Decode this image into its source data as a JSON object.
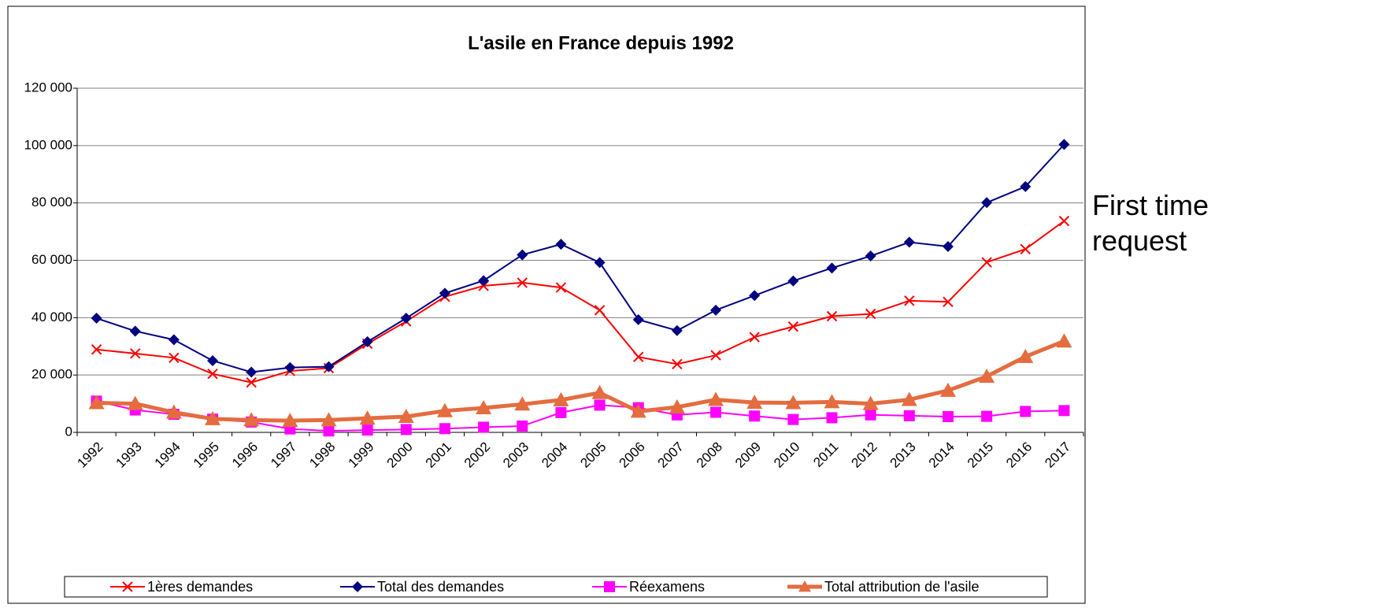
{
  "chart_data": {
    "type": "line",
    "title": "L'asile en France depuis 1992",
    "annotation": "First time request",
    "categories": [
      "1992",
      "1993",
      "1994",
      "1995",
      "1996",
      "1997",
      "1998",
      "1999",
      "2000",
      "2001",
      "2002",
      "2003",
      "2004",
      "2005",
      "2006",
      "2007",
      "2008",
      "2009",
      "2010",
      "2011",
      "2012",
      "2013",
      "2014",
      "2015",
      "2016",
      "2017"
    ],
    "series": [
      {
        "name": "1ères demandes",
        "color": "#ff0000",
        "marker": "x",
        "values": [
          28900,
          27500,
          26000,
          20400,
          17400,
          21400,
          22400,
          30900,
          38700,
          47300,
          51100,
          52200,
          50500,
          42600,
          26300,
          23800,
          26900,
          33200,
          36900,
          40500,
          41300,
          45900,
          45500,
          59300,
          63900,
          73700
        ]
      },
      {
        "name": "Total des demandes",
        "color": "#000080",
        "marker": "diamond",
        "values": [
          39800,
          35300,
          32300,
          25000,
          21000,
          22600,
          22900,
          31600,
          39800,
          48500,
          52900,
          61900,
          65600,
          59200,
          39300,
          35500,
          42600,
          47700,
          52800,
          57300,
          61500,
          66300,
          64800,
          80100,
          85700,
          100400
        ]
      },
      {
        "name": "Réexamens",
        "color": "#ff00ff",
        "marker": "square",
        "values": [
          10900,
          7800,
          6300,
          4600,
          3600,
          1200,
          500,
          800,
          1000,
          1300,
          1800,
          2200,
          6900,
          9500,
          8600,
          6100,
          7000,
          5700,
          4500,
          5100,
          6100,
          5800,
          5500,
          5600,
          7300,
          7600
        ]
      },
      {
        "name": "Total attribution de l'asile",
        "color": "#e46c3f",
        "marker": "triangle",
        "values": [
          10300,
          10000,
          7000,
          4700,
          4300,
          4100,
          4300,
          4900,
          5500,
          7500,
          8500,
          9800,
          11300,
          13800,
          7300,
          8800,
          11400,
          10400,
          10300,
          10600,
          10000,
          11400,
          14600,
          19500,
          26400,
          31800
        ]
      }
    ],
    "ylim": [
      0,
      120000
    ],
    "yticks": [
      0,
      {
        "value": 20000,
        "label": "20 000"
      },
      {
        "value": 40000,
        "label": "40 000"
      },
      {
        "value": 60000,
        "label": "60 000"
      },
      {
        "value": 80000,
        "label": "80 000"
      },
      {
        "value": 100000,
        "label": "100 000"
      },
      {
        "value": 120000,
        "label": "120 000"
      }
    ],
    "grid": true,
    "legend": "bottom"
  }
}
